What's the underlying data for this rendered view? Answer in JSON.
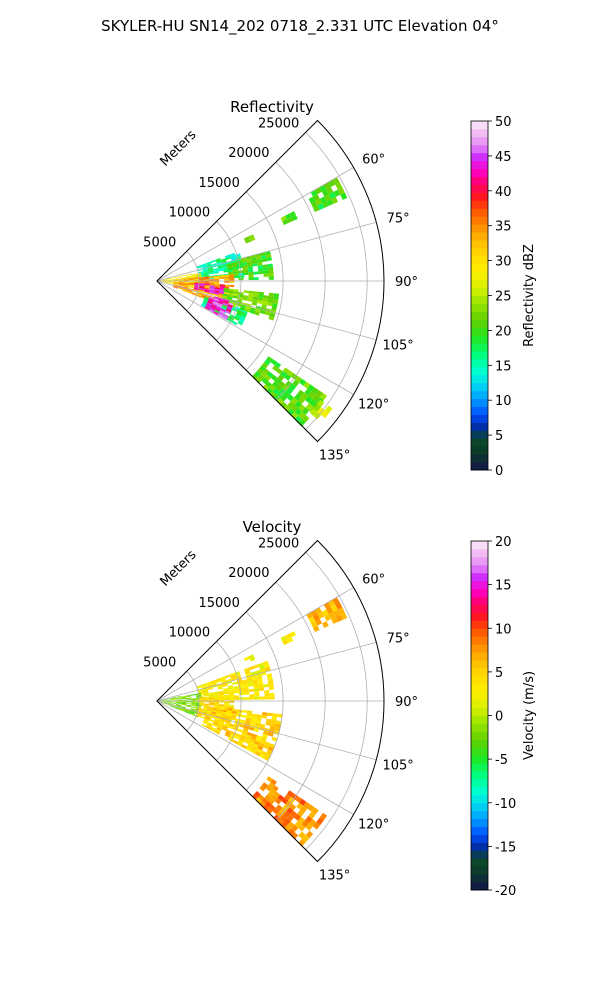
{
  "suptitle": "SKYLER-HU  SN14_202  0718_2.331 UTC Elevation 04°",
  "chart_data": [
    {
      "type": "heatmap",
      "projection": "polar-sector",
      "title": "Reflectivity",
      "range_label": "Meters",
      "range_ticks": [
        5000,
        10000,
        15000,
        20000,
        25000
      ],
      "range_tick_labels": [
        "5000",
        "10000",
        "15000",
        "20000",
        "25000"
      ],
      "range_max": 27000,
      "theta_min_deg": 45,
      "theta_max_deg": 135,
      "theta_ticks": [
        60,
        75,
        90,
        105,
        120,
        135
      ],
      "theta_tick_labels": [
        "60°",
        "75°",
        "90°",
        "105°",
        "120°",
        "135°"
      ],
      "grid": true,
      "colorbar": {
        "label": "Reflectivity dBZ",
        "min": 0,
        "max": 50,
        "ticks": [
          0,
          5,
          10,
          15,
          20,
          25,
          30,
          35,
          40,
          45,
          50
        ],
        "tick_labels": [
          "0",
          "5",
          "10",
          "15",
          "20",
          "25",
          "30",
          "35",
          "40",
          "45",
          "50"
        ]
      },
      "echo_regions": [
        {
          "az": [
            60,
            66
          ],
          "range": [
            20500,
            24500
          ],
          "value": 20
        },
        {
          "az": [
            63,
            66
          ],
          "range": [
            16500,
            18200
          ],
          "value": 21
        },
        {
          "az": [
            64,
            67
          ],
          "range": [
            11500,
            12300
          ],
          "value": 22
        },
        {
          "az": [
            70,
            86
          ],
          "range": [
            5000,
            10000
          ],
          "value": 16
        },
        {
          "az": [
            75,
            88
          ],
          "range": [
            8500,
            13500
          ],
          "value": 20
        },
        {
          "az": [
            78,
            100
          ],
          "range": [
            500,
            5000
          ],
          "value": 28
        },
        {
          "az": [
            85,
            110
          ],
          "range": [
            2000,
            9000
          ],
          "value": 34
        },
        {
          "az": [
            93,
            102
          ],
          "range": [
            4500,
            8000
          ],
          "value": 43
        },
        {
          "az": [
            108,
            118
          ],
          "range": [
            6000,
            11000
          ],
          "value": 17
        },
        {
          "az": [
            96,
            108
          ],
          "range": [
            8000,
            14500
          ],
          "value": 22
        },
        {
          "az": [
            105,
            118
          ],
          "range": [
            6500,
            9500
          ],
          "value": 44
        },
        {
          "az": [
            124,
            134
          ],
          "range": [
            16000,
            24000
          ],
          "value": 21
        },
        {
          "az": [
            126,
            130
          ],
          "range": [
            24000,
            25500
          ],
          "value": 26
        }
      ]
    },
    {
      "type": "heatmap",
      "projection": "polar-sector",
      "title": "Velocity",
      "range_label": "Meters",
      "range_ticks": [
        5000,
        10000,
        15000,
        20000,
        25000
      ],
      "range_tick_labels": [
        "5000",
        "10000",
        "15000",
        "20000",
        "25000"
      ],
      "range_max": 27000,
      "theta_min_deg": 45,
      "theta_max_deg": 135,
      "theta_ticks": [
        60,
        75,
        90,
        105,
        120,
        135
      ],
      "theta_tick_labels": [
        "60°",
        "75°",
        "90°",
        "105°",
        "120°",
        "135°"
      ],
      "grid": true,
      "colorbar": {
        "label": "Velocity (m/s)",
        "min": -20,
        "max": 20,
        "ticks": [
          -20,
          -15,
          -10,
          -5,
          0,
          5,
          10,
          15,
          20
        ],
        "tick_labels": [
          "-20",
          "-15",
          "-10",
          "-5",
          "0",
          "5",
          "10",
          "15",
          "20"
        ]
      },
      "echo_regions": [
        {
          "az": [
            60,
            66
          ],
          "range": [
            20500,
            24500
          ],
          "value": 6
        },
        {
          "az": [
            63,
            66
          ],
          "range": [
            16500,
            18200
          ],
          "value": 3
        },
        {
          "az": [
            64,
            67
          ],
          "range": [
            11500,
            12300
          ],
          "value": 2
        },
        {
          "az": [
            70,
            88
          ],
          "range": [
            5000,
            13500
          ],
          "value": 3
        },
        {
          "az": [
            78,
            110
          ],
          "range": [
            500,
            5000
          ],
          "value": -2
        },
        {
          "az": [
            85,
            110
          ],
          "range": [
            5000,
            9000
          ],
          "value": 4
        },
        {
          "az": [
            96,
            118
          ],
          "range": [
            6000,
            14500
          ],
          "value": 5
        },
        {
          "az": [
            124,
            134
          ],
          "range": [
            16000,
            24000
          ],
          "value": 8
        }
      ]
    }
  ]
}
